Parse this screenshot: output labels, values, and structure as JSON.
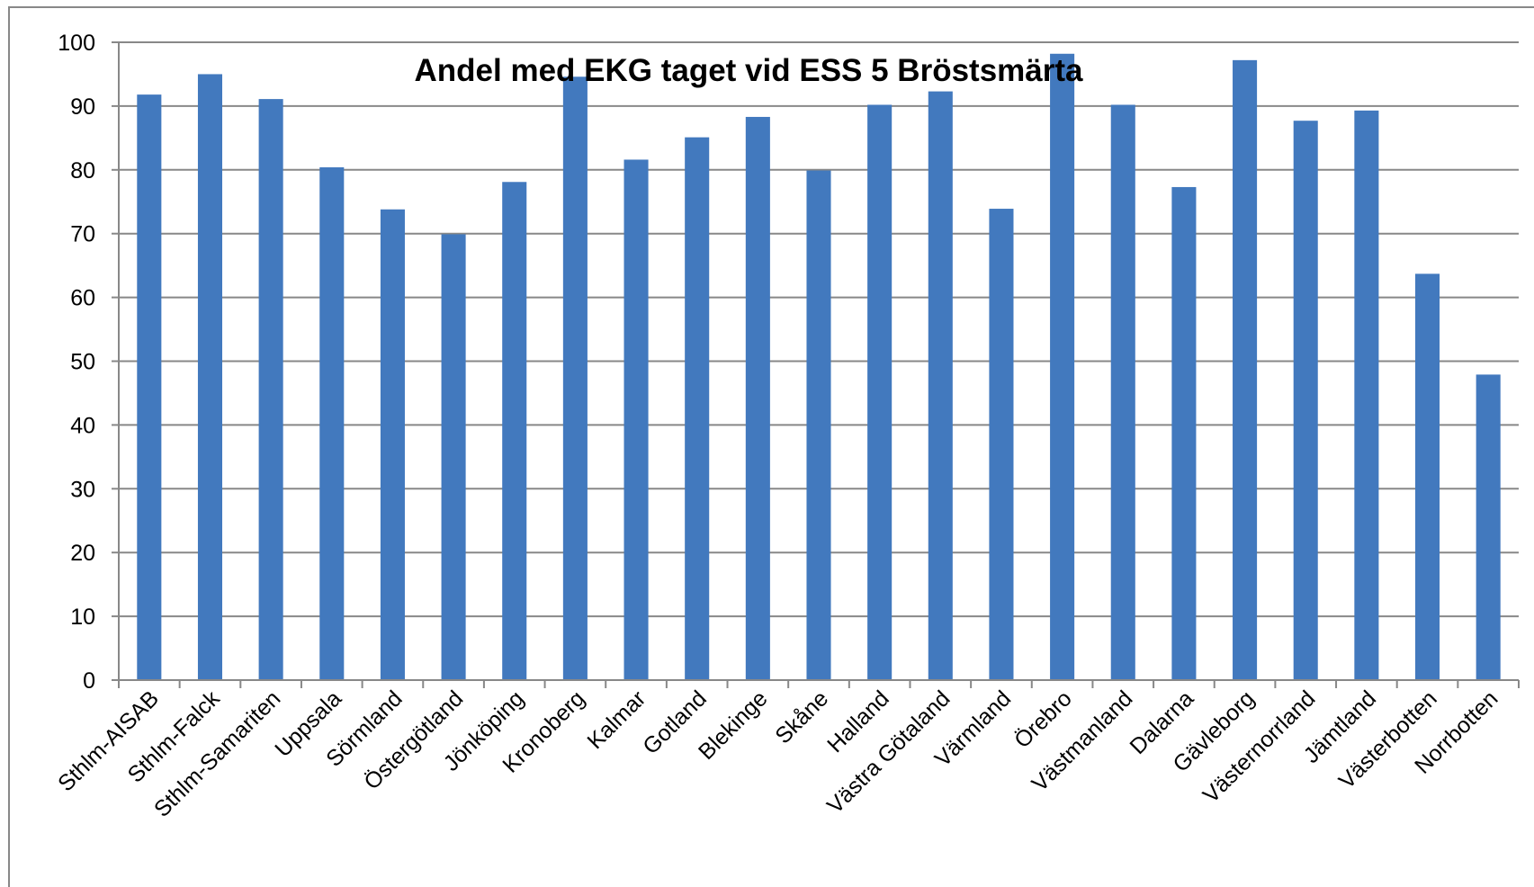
{
  "chart_data": {
    "type": "bar",
    "title": "Andel med EKG taget vid ESS 5 Bröstsmärta",
    "categories": [
      "Sthlm-AISAB",
      "Sthlm-Falck",
      "Sthlm-Samariten",
      "Uppsala",
      "Sörmland",
      "Östergötland",
      "Jönköping",
      "Kronoberg",
      "Kalmar",
      "Gotland",
      "Blekinge",
      "Skåne",
      "Halland",
      "Västra Götaland",
      "Värmland",
      "Örebro",
      "Västmanland",
      "Dalarna",
      "Gävleborg",
      "Västernorrland",
      "Jämtland",
      "Västerbotten",
      "Norrbotten"
    ],
    "values": [
      91.8,
      95,
      91.1,
      80.4,
      73.8,
      69.9,
      78.1,
      94.6,
      81.6,
      85.1,
      88.3,
      79.9,
      90.2,
      92.3,
      73.9,
      98.2,
      90.2,
      77.3,
      97.2,
      87.7,
      89.3,
      63.7,
      47.9
    ],
    "color": "#4279be",
    "ylim": [
      0,
      100
    ],
    "yticks": [
      0,
      10,
      20,
      30,
      40,
      50,
      60,
      70,
      80,
      90,
      100
    ],
    "grid": true
  }
}
